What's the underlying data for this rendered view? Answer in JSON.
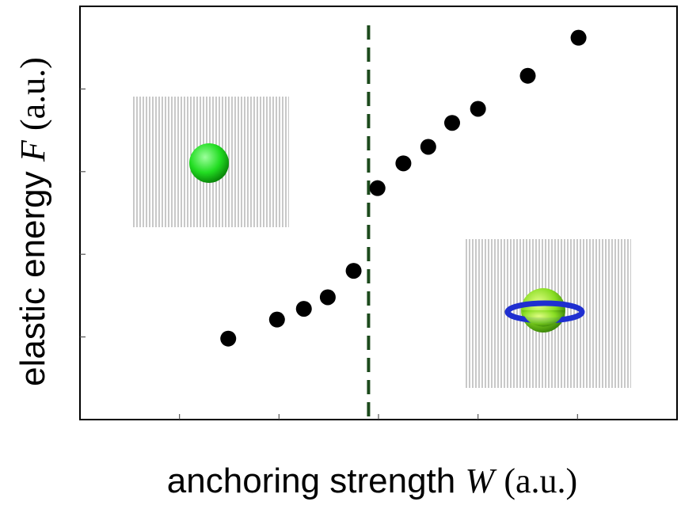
{
  "chart_data": {
    "type": "scatter",
    "x_label": {
      "text": "anchoring strength",
      "symbol": "W",
      "unit": "(a.u.)"
    },
    "y_label": {
      "text": "elastic energy",
      "symbol": "F",
      "unit": "(a.u.)"
    },
    "x": [
      1.49,
      1.98,
      2.25,
      2.49,
      2.75,
      2.99,
      3.25,
      3.5,
      3.74,
      4.0,
      4.5,
      5.01
    ],
    "values": [
      0.98,
      1.21,
      1.34,
      1.48,
      1.8,
      2.8,
      3.1,
      3.3,
      3.59,
      3.76,
      4.16,
      4.62
    ],
    "color": "#000000",
    "xlim": [
      0,
      6
    ],
    "xticks": [
      1,
      2,
      3,
      4,
      5
    ],
    "ylim": [
      0,
      5
    ],
    "yticks": [
      1,
      2,
      3,
      4
    ],
    "grid": false,
    "vline": {
      "x": 2.9,
      "color": "#1c4a1c"
    }
  }
}
